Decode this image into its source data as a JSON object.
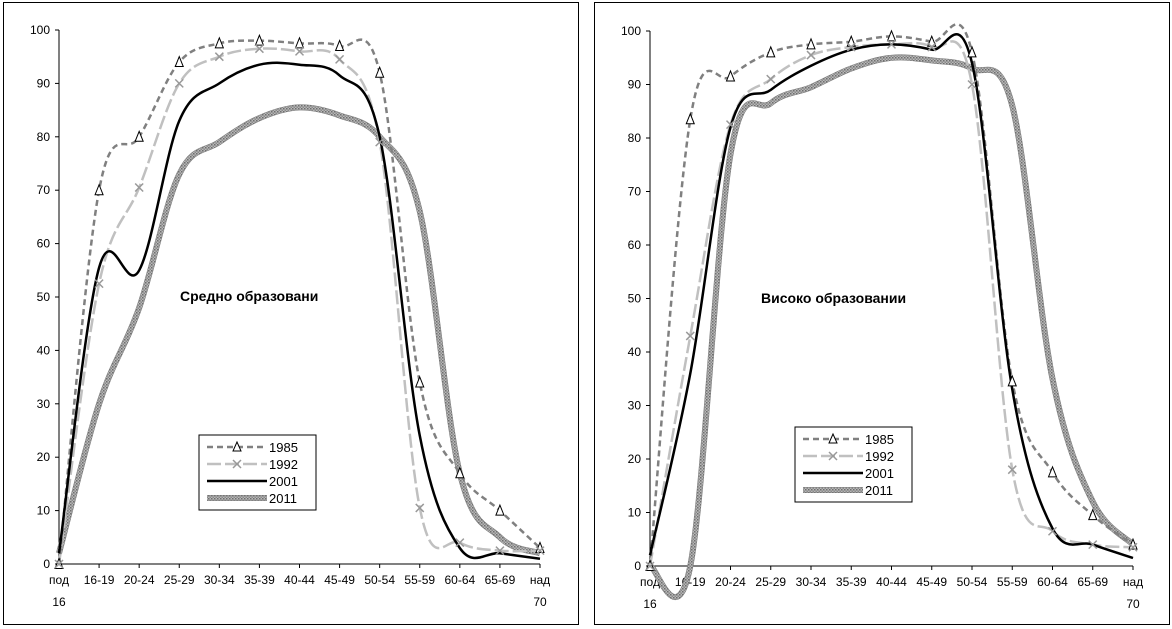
{
  "chart_data": [
    {
      "type": "line",
      "annotation": "Средно образовани",
      "xticks": [
        [
          "под",
          "16"
        ],
        [
          "16-19"
        ],
        [
          "20-24"
        ],
        [
          "25-29"
        ],
        [
          "30-34"
        ],
        [
          "35-39"
        ],
        [
          "40-44"
        ],
        [
          "45-49"
        ],
        [
          "50-54"
        ],
        [
          "55-59"
        ],
        [
          "60-64"
        ],
        [
          "65-69"
        ],
        [
          "над",
          "70"
        ]
      ],
      "ylim": [
        0,
        100
      ],
      "yticks": [
        0,
        10,
        20,
        30,
        40,
        50,
        60,
        70,
        80,
        90,
        100
      ],
      "series": [
        {
          "name": "1985",
          "values": [
            0,
            70,
            80,
            94,
            97.5,
            98,
            97.5,
            97,
            92,
            34,
            17,
            10,
            3
          ]
        },
        {
          "name": "1992",
          "values": [
            0,
            52.5,
            70.5,
            90,
            95,
            96.5,
            96,
            94.5,
            79,
            10.5,
            4,
            2.5,
            2.5
          ]
        },
        {
          "name": "2001",
          "values": [
            2,
            55.5,
            55,
            83,
            90,
            93.5,
            93.5,
            91.5,
            80,
            24,
            3,
            2,
            1
          ]
        },
        {
          "name": "2011",
          "values": [
            2,
            30,
            48,
            73,
            79,
            83.5,
            85.5,
            84,
            80,
            66,
            17,
            5,
            2
          ]
        }
      ]
    },
    {
      "type": "line",
      "annotation": "Високо образовании",
      "xticks": [
        [
          "под",
          "16"
        ],
        [
          "16-19"
        ],
        [
          "20-24"
        ],
        [
          "25-29"
        ],
        [
          "30-34"
        ],
        [
          "35-39"
        ],
        [
          "40-44"
        ],
        [
          "45-49"
        ],
        [
          "50-54"
        ],
        [
          "55-59"
        ],
        [
          "60-64"
        ],
        [
          "65-69"
        ],
        [
          "над",
          "70"
        ]
      ],
      "ylim": [
        0,
        100
      ],
      "yticks": [
        0,
        10,
        20,
        30,
        40,
        50,
        60,
        70,
        80,
        90,
        100
      ],
      "series": [
        {
          "name": "1985",
          "values": [
            0,
            83.5,
            91.5,
            96,
            97.5,
            98,
            99,
            98,
            96,
            34.5,
            17.5,
            9.5,
            4
          ]
        },
        {
          "name": "1992",
          "values": [
            0,
            43,
            82.5,
            91,
            95.5,
            97,
            97.5,
            97,
            90,
            18,
            6.5,
            4,
            3.5
          ]
        },
        {
          "name": "2001",
          "values": [
            2,
            36,
            82,
            89,
            93.5,
            96.5,
            97.5,
            96.5,
            94,
            33,
            7,
            4,
            1.5
          ]
        },
        {
          "name": "2011",
          "values": [
            0,
            0,
            77,
            86.5,
            89.5,
            93,
            95,
            94.5,
            93,
            86,
            35,
            12,
            4
          ]
        }
      ]
    }
  ]
}
